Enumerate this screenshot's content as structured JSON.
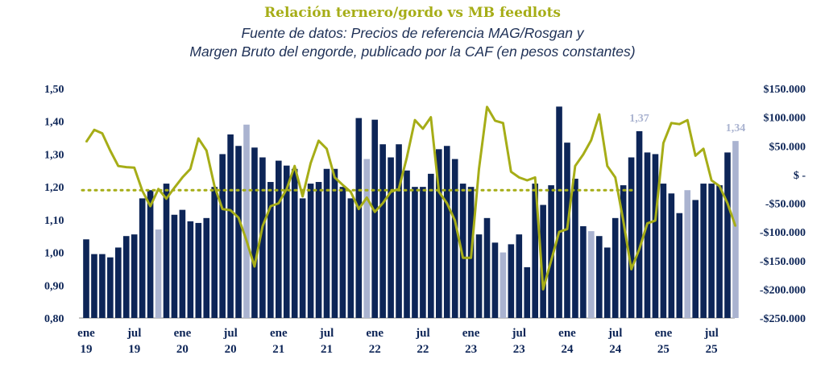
{
  "colors": {
    "bar": "#0d2557",
    "bar_highlight": "#aab3d0",
    "line": "#a6ad17",
    "text": "#0d2557"
  },
  "chart_data": {
    "type": "bar+line",
    "title": "Relación ternero/gordo vs MB feedlots",
    "subtitle_line1": "Fuente de datos: Precios de referencia MAG/Rosgan y",
    "subtitle_line2": "Margen Bruto del engorde, publicado por la CAF (en pesos constantes)",
    "y_left": {
      "ylim": [
        0.8,
        1.5
      ],
      "ticks": [
        "1,50",
        "1,40",
        "1,30",
        "1,20",
        "1,10",
        "1,00",
        "0,90",
        "0,80"
      ]
    },
    "y_right": {
      "ylim": [
        -250000,
        150000
      ],
      "ticks": [
        "$150.000",
        "$100.000",
        "$50.000",
        "$ -",
        "-$50.000",
        "-$100.000",
        "-$150.000",
        "-$200.000",
        "-$250.000"
      ]
    },
    "x_ticks": [
      {
        "month": "ene",
        "year": "19",
        "index": 0
      },
      {
        "month": "jul",
        "year": "19",
        "index": 6
      },
      {
        "month": "ene",
        "year": "20",
        "index": 12
      },
      {
        "month": "jul",
        "year": "20",
        "index": 18
      },
      {
        "month": "ene",
        "year": "21",
        "index": 24
      },
      {
        "month": "jul",
        "year": "21",
        "index": 30
      },
      {
        "month": "ene",
        "year": "22",
        "index": 36
      },
      {
        "month": "jul",
        "year": "22",
        "index": 42
      },
      {
        "month": "ene",
        "year": "23",
        "index": 48
      },
      {
        "month": "jul",
        "year": "23",
        "index": 54
      },
      {
        "month": "ene",
        "year": "24",
        "index": 60
      },
      {
        "month": "jul",
        "year": "24",
        "index": 66
      },
      {
        "month": "ene",
        "year": "25",
        "index": 72
      },
      {
        "month": "jul",
        "year": "25",
        "index": 78
      }
    ],
    "series": [
      {
        "name": "Relación ternero/gordo",
        "type": "bar",
        "axis": "left",
        "highlight_indices": [
          9,
          20,
          35,
          52,
          63,
          75,
          81
        ],
        "values": [
          1.04,
          0.995,
          0.995,
          0.985,
          1.015,
          1.05,
          1.055,
          1.165,
          1.19,
          1.07,
          1.21,
          1.115,
          1.13,
          1.095,
          1.09,
          1.105,
          1.2,
          1.3,
          1.36,
          1.325,
          1.39,
          1.32,
          1.29,
          1.215,
          1.28,
          1.265,
          1.255,
          1.165,
          1.21,
          1.215,
          1.255,
          1.255,
          1.2,
          1.165,
          1.41,
          1.285,
          1.405,
          1.33,
          1.29,
          1.33,
          1.25,
          1.2,
          1.2,
          1.24,
          1.315,
          1.325,
          1.285,
          1.21,
          1.2,
          1.055,
          1.105,
          1.03,
          1.0,
          1.025,
          1.055,
          0.955,
          1.21,
          1.145,
          1.205,
          1.445,
          1.335,
          1.225,
          1.08,
          1.065,
          1.05,
          1.015,
          1.105,
          1.205,
          1.29,
          1.37,
          1.305,
          1.3,
          1.21,
          1.18,
          1.12,
          1.19,
          1.16,
          1.21,
          1.21,
          1.205,
          1.305,
          1.34
        ]
      },
      {
        "name": "MB feedlots",
        "type": "line",
        "axis": "right",
        "values": [
          57000,
          78000,
          72000,
          42000,
          15000,
          13000,
          12000,
          -28000,
          -55000,
          -25000,
          -42000,
          -23000,
          -5000,
          10000,
          63000,
          42000,
          -20000,
          -60000,
          -62000,
          -75000,
          -115000,
          -160000,
          -90000,
          -55000,
          -50000,
          -25000,
          15000,
          -38000,
          20000,
          59000,
          45000,
          -5000,
          -18000,
          -30000,
          -60000,
          -40000,
          -65000,
          -50000,
          -30000,
          -25000,
          30000,
          95000,
          80000,
          100000,
          -30000,
          -50000,
          -80000,
          -145000,
          -145000,
          10000,
          118000,
          94000,
          90000,
          5000,
          -5000,
          -10000,
          -5000,
          -200000,
          -150000,
          -100000,
          -95000,
          15000,
          35000,
          60000,
          105000,
          15000,
          -5000,
          -80000,
          -165000,
          -130000,
          -85000,
          -80000,
          55000,
          90000,
          88000,
          95000,
          33000,
          45000,
          -10000,
          -20000,
          -50000,
          -90000
        ]
      }
    ],
    "reference_line": {
      "axis": "left",
      "value": 1.19,
      "style": "dotted"
    },
    "annotations": [
      {
        "index": 69,
        "label": "1,37"
      },
      {
        "index": 81,
        "label": "1,34"
      }
    ]
  }
}
